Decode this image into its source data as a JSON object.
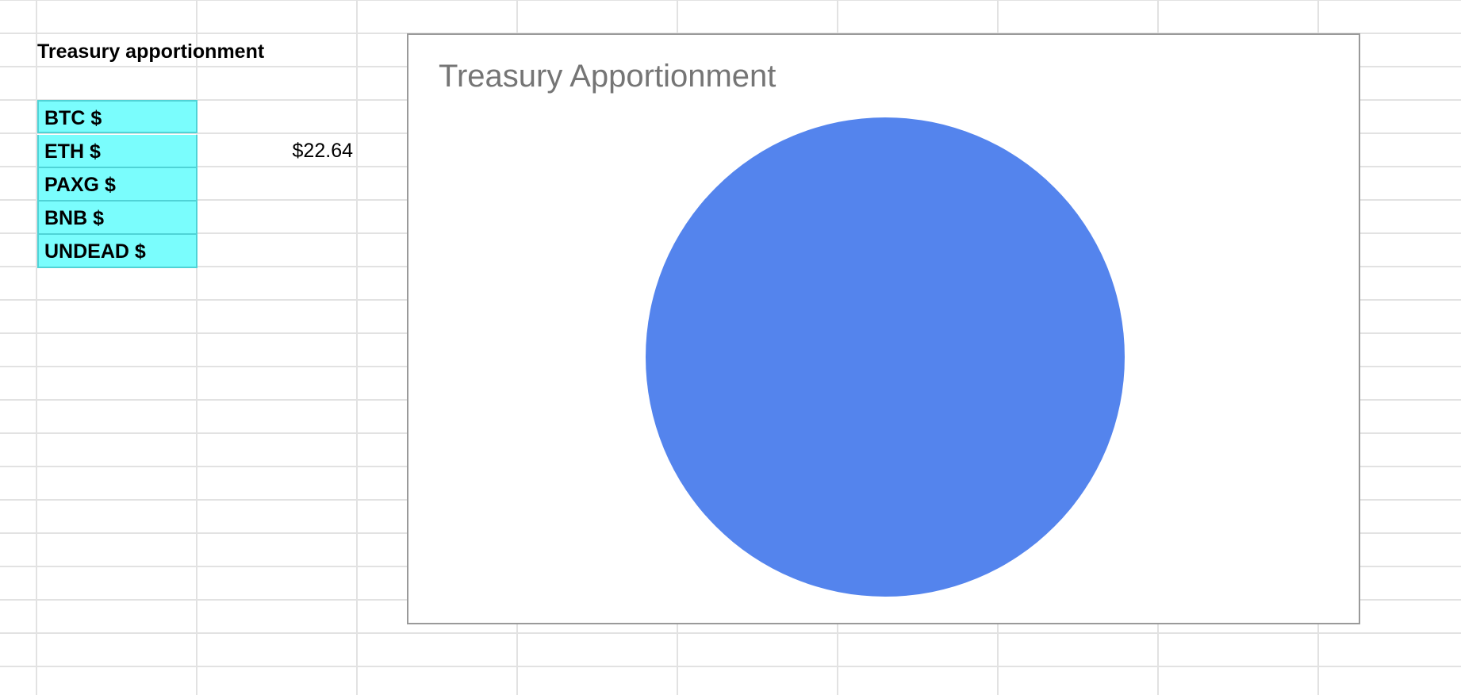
{
  "sheet": {
    "section_title": "Treasury apportionment",
    "highlight_color": "#7afdfd",
    "rows": [
      {
        "label": "BTC $",
        "value": ""
      },
      {
        "label": "ETH $",
        "value": "$22.64"
      },
      {
        "label": "PAXG $",
        "value": ""
      },
      {
        "label": "BNB $",
        "value": ""
      },
      {
        "label": "UNDEAD $",
        "value": ""
      }
    ]
  },
  "chart_data": {
    "type": "pie",
    "title": "Treasury Apportionment",
    "categories": [
      "BTC $",
      "ETH $",
      "PAXG $",
      "BNB $",
      "UNDEAD $"
    ],
    "values": [
      0,
      22.64,
      0,
      0,
      0
    ],
    "colors": [
      "#5484ed",
      "#5484ed",
      "#5484ed",
      "#5484ed",
      "#5484ed"
    ],
    "legend": "none"
  }
}
